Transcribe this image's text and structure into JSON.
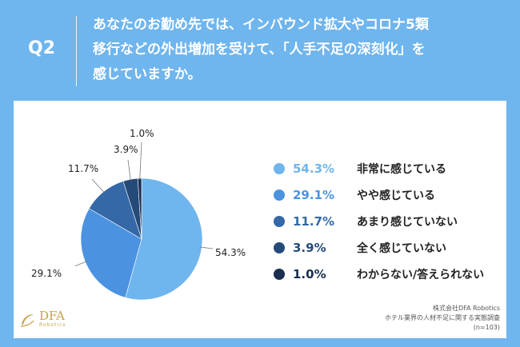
{
  "question": {
    "badge": "Q2",
    "lines": [
      "あなたのお勤め先では、インバウンド拡大やコロナ5類",
      "移行などの外出増加を受けて、「人手不足の深刻化」を",
      "感じていますか。"
    ]
  },
  "chart_data": {
    "type": "pie",
    "title": "",
    "start_angle_deg": 0,
    "direction": "clockwise",
    "series": [
      {
        "label": "非常に感じている",
        "value": 54.3,
        "display": "54.3%",
        "color": "#6fb5ee"
      },
      {
        "label": "やや感じている",
        "value": 29.1,
        "display": "29.1%",
        "color": "#4b93e0"
      },
      {
        "label": "あまり感じていない",
        "value": 11.7,
        "display": "11.7%",
        "color": "#3468a7"
      },
      {
        "label": "全く感じていない",
        "value": 3.9,
        "display": "3.9%",
        "color": "#244a78"
      },
      {
        "label": "わからない/答えられない",
        "value": 1.0,
        "display": "1.0%",
        "color": "#1a2f4f"
      }
    ],
    "legend_position": "right"
  },
  "logo": {
    "main": "DFA",
    "sub": "Robotics"
  },
  "source": {
    "line1": "株式会社DFA Robotics",
    "line2": "ホテル業界の人材不足に関する実態調査",
    "line3": "(n=103)"
  },
  "colors": {
    "background": "#6fb5ee",
    "card": "#ffffff",
    "logo": "#c9a24a"
  }
}
